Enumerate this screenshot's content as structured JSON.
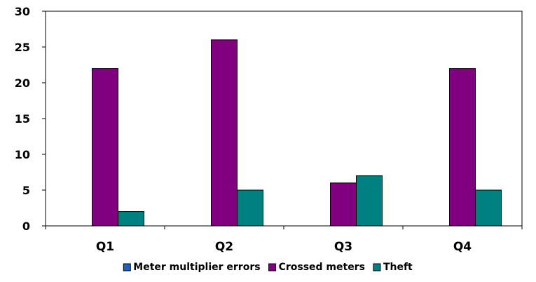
{
  "chart_data": {
    "type": "bar",
    "categories": [
      "Q1",
      "Q2",
      "Q3",
      "Q4"
    ],
    "series": [
      {
        "name": "Meter multiplier errors",
        "values": [
          0,
          0,
          0,
          0
        ],
        "color": "#1f5fbf"
      },
      {
        "name": "Crossed meters",
        "values": [
          22,
          26,
          6,
          22
        ],
        "color": "#800080"
      },
      {
        "name": "Theft",
        "values": [
          2,
          5,
          7,
          5
        ],
        "color": "#008080"
      }
    ],
    "title": "",
    "xlabel": "",
    "ylabel": "",
    "ylim": [
      0,
      30
    ],
    "yticks": [
      0,
      5,
      10,
      15,
      20,
      25,
      30
    ],
    "grid": false,
    "legend_position": "bottom"
  }
}
